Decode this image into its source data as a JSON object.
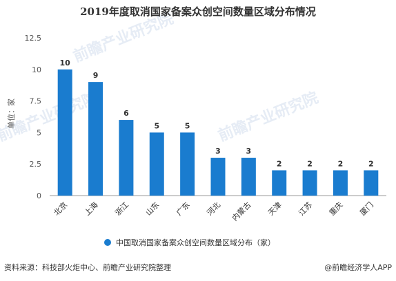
{
  "chart_data": {
    "type": "bar",
    "title": "2019年度取消国家备案众创空间数量区域分布情况",
    "ylabel": "单位：家",
    "xlabel": "",
    "categories": [
      "北京",
      "上海",
      "浙江",
      "山东",
      "广东",
      "河北",
      "内蒙古",
      "天津",
      "江苏",
      "重庆",
      "厦门"
    ],
    "series": [
      {
        "name": "中国取消国家备案众创空间数量区域分布（家）",
        "values": [
          10,
          9,
          6,
          5,
          5,
          3,
          3,
          2,
          2,
          2,
          2
        ]
      }
    ],
    "ylim": [
      0,
      12.5
    ],
    "yticks": [
      "0",
      "2.5",
      "5",
      "7.5",
      "10",
      "12.5"
    ],
    "grid": false,
    "legend_position": "bottom",
    "bar_color": "#1a7ccf"
  },
  "footer": {
    "source": "资料来源：科技部火炬中心、前瞻产业研究院整理",
    "credit": "@前瞻经济学人APP"
  },
  "watermark": {
    "text": "前瞻产业研究院",
    "small_text": "前瞻产业研究院"
  },
  "colors": {
    "accent": "#1a7ccf",
    "axis": "#999999",
    "text": "#333333"
  }
}
